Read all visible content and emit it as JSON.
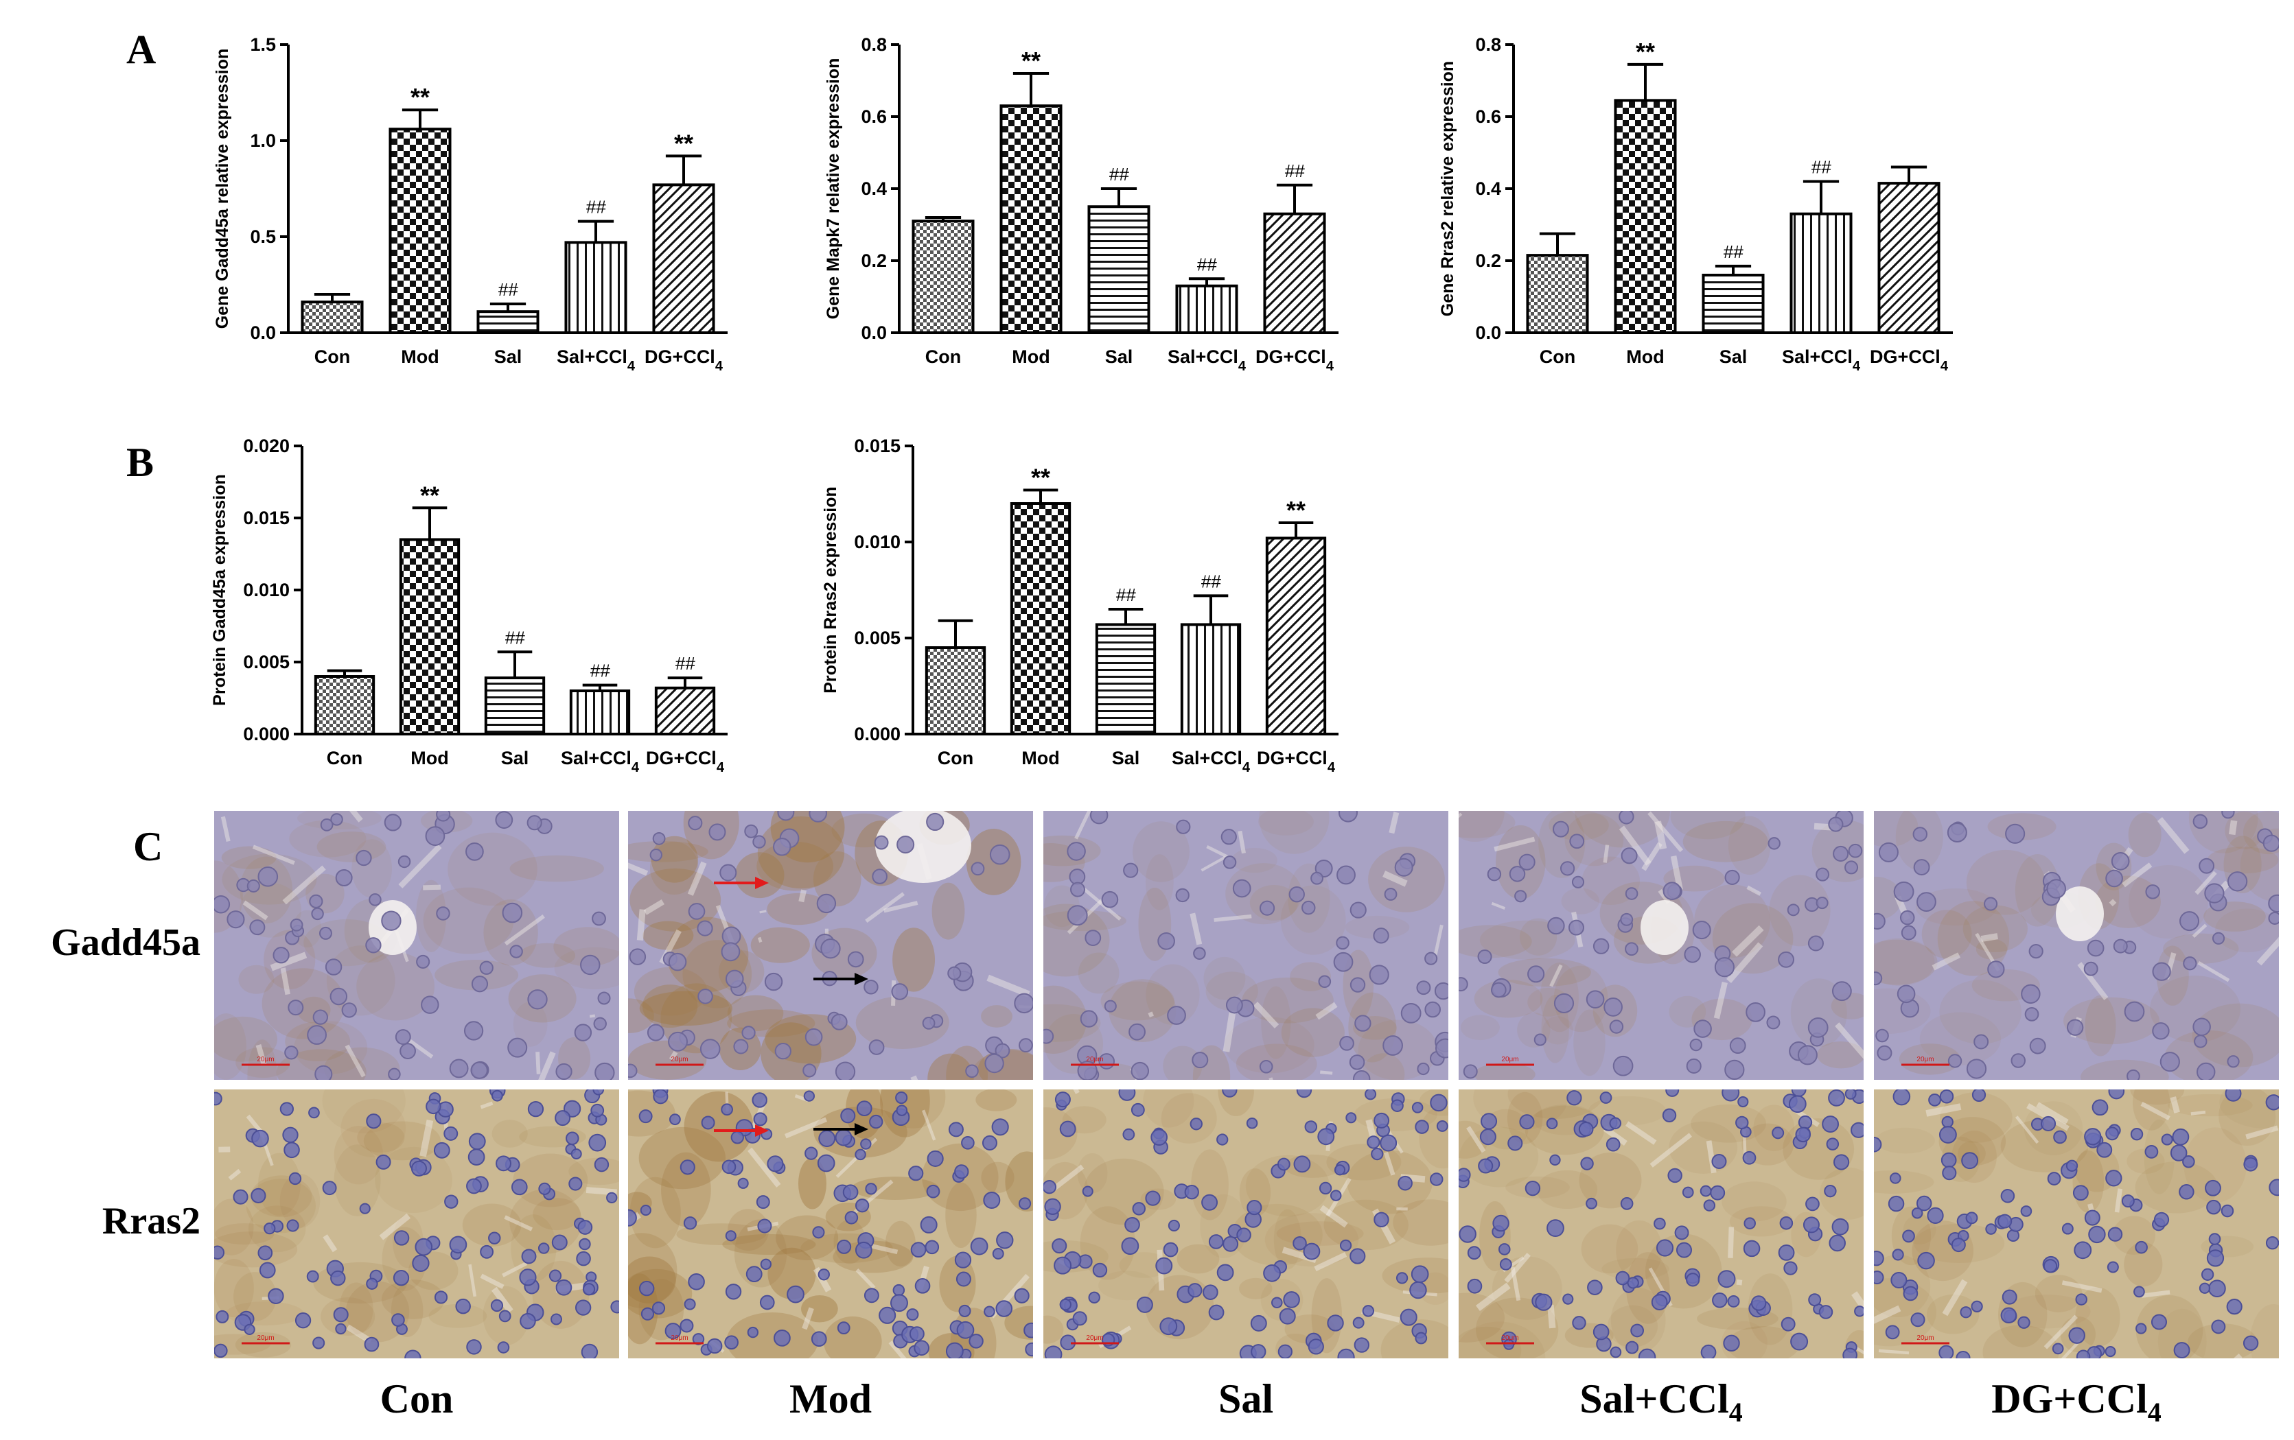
{
  "panels": {
    "A": "A",
    "B": "B",
    "C": "C"
  },
  "colors": {
    "axis": "#000000",
    "micro_gadd45a_bg": "#a8a2c4",
    "micro_rras2_bg": "#cbb993",
    "nucleus": "#6b6fb5",
    "scale_bar": "#d01818",
    "arrow_red": "#e21b1b",
    "arrow_black": "#000000"
  },
  "chart_data": [
    {
      "id": "gadd45a-gene",
      "type": "bar",
      "ylabel": "Gene Gadd45a relative expression",
      "categories": [
        {
          "main": "Con",
          "sub": ""
        },
        {
          "main": "Mod",
          "sub": ""
        },
        {
          "main": "Sal",
          "sub": ""
        },
        {
          "main": "Sal+CCl",
          "sub": "4"
        },
        {
          "main": "DG+CCl",
          "sub": "4"
        }
      ],
      "values": [
        0.16,
        1.06,
        0.11,
        0.47,
        0.77
      ],
      "errors": [
        0.04,
        0.1,
        0.04,
        0.11,
        0.15
      ],
      "patterns": [
        "fine-check",
        "coarse-check",
        "horizontal",
        "vertical",
        "diagonal"
      ],
      "significance": [
        "",
        "**",
        "##",
        "##",
        "**"
      ],
      "ylim": [
        0,
        1.5
      ],
      "yticks": [
        "0.0",
        "0.5",
        "1.0",
        "1.5"
      ]
    },
    {
      "id": "mapk7-gene",
      "type": "bar",
      "ylabel": "Gene Mapk7 relative expression",
      "categories": [
        {
          "main": "Con",
          "sub": ""
        },
        {
          "main": "Mod",
          "sub": ""
        },
        {
          "main": "Sal",
          "sub": ""
        },
        {
          "main": "Sal+CCl",
          "sub": "4"
        },
        {
          "main": "DG+CCl",
          "sub": "4"
        }
      ],
      "values": [
        0.31,
        0.63,
        0.35,
        0.13,
        0.33
      ],
      "errors": [
        0.01,
        0.09,
        0.05,
        0.02,
        0.08
      ],
      "patterns": [
        "fine-check",
        "coarse-check",
        "horizontal",
        "vertical",
        "diagonal"
      ],
      "significance": [
        "",
        "**",
        "##",
        "##",
        "##"
      ],
      "ylim": [
        0,
        0.8
      ],
      "yticks": [
        "0.0",
        "0.2",
        "0.4",
        "0.6",
        "0.8"
      ]
    },
    {
      "id": "rras2-gene",
      "type": "bar",
      "ylabel": "Gene Rras2 relative expression",
      "categories": [
        {
          "main": "Con",
          "sub": ""
        },
        {
          "main": "Mod",
          "sub": ""
        },
        {
          "main": "Sal",
          "sub": ""
        },
        {
          "main": "Sal+CCl",
          "sub": "4"
        },
        {
          "main": "DG+CCl",
          "sub": "4"
        }
      ],
      "values": [
        0.215,
        0.645,
        0.16,
        0.33,
        0.415
      ],
      "errors": [
        0.06,
        0.1,
        0.025,
        0.09,
        0.045
      ],
      "patterns": [
        "fine-check",
        "coarse-check",
        "horizontal",
        "vertical",
        "diagonal"
      ],
      "significance": [
        "",
        "**",
        "##",
        "##",
        ""
      ],
      "ylim": [
        0,
        0.8
      ],
      "yticks": [
        "0.0",
        "0.2",
        "0.4",
        "0.6",
        "0.8"
      ]
    },
    {
      "id": "gadd45a-protein",
      "type": "bar",
      "ylabel": "Protein Gadd45a expression",
      "categories": [
        {
          "main": "Con",
          "sub": ""
        },
        {
          "main": "Mod",
          "sub": ""
        },
        {
          "main": "Sal",
          "sub": ""
        },
        {
          "main": "Sal+CCl",
          "sub": "4"
        },
        {
          "main": "DG+CCl",
          "sub": "4"
        }
      ],
      "values": [
        0.004,
        0.0135,
        0.0039,
        0.003,
        0.0032
      ],
      "errors": [
        0.0004,
        0.0022,
        0.0018,
        0.0004,
        0.0007
      ],
      "patterns": [
        "fine-check",
        "coarse-check",
        "horizontal",
        "vertical",
        "diagonal"
      ],
      "significance": [
        "",
        "**",
        "##",
        "##",
        "##"
      ],
      "ylim": [
        0,
        0.02
      ],
      "yticks": [
        "0.000",
        "0.005",
        "0.010",
        "0.015",
        "0.020"
      ]
    },
    {
      "id": "rras2-protein",
      "type": "bar",
      "ylabel": "Protein Rras2 expression",
      "categories": [
        {
          "main": "Con",
          "sub": ""
        },
        {
          "main": "Mod",
          "sub": ""
        },
        {
          "main": "Sal",
          "sub": ""
        },
        {
          "main": "Sal+CCl",
          "sub": "4"
        },
        {
          "main": "DG+CCl",
          "sub": "4"
        }
      ],
      "values": [
        0.0045,
        0.012,
        0.0057,
        0.0057,
        0.0102
      ],
      "errors": [
        0.0014,
        0.0007,
        0.0008,
        0.0015,
        0.0008
      ],
      "patterns": [
        "fine-check",
        "coarse-check",
        "horizontal",
        "vertical",
        "diagonal"
      ],
      "significance": [
        "",
        "**",
        "##",
        "##",
        "**"
      ],
      "ylim": [
        0,
        0.015
      ],
      "yticks": [
        "0.000",
        "0.005",
        "0.010",
        "0.015"
      ]
    }
  ],
  "micrographs": {
    "rows": [
      "Gadd45a",
      "Rras2"
    ],
    "columns": [
      {
        "main": "Con",
        "sub": ""
      },
      {
        "main": "Mod",
        "sub": ""
      },
      {
        "main": "Sal",
        "sub": ""
      },
      {
        "main": "Sal+CCl",
        "sub": "4"
      },
      {
        "main": "DG+CCl",
        "sub": "4"
      }
    ],
    "scale_label": "20μm"
  }
}
